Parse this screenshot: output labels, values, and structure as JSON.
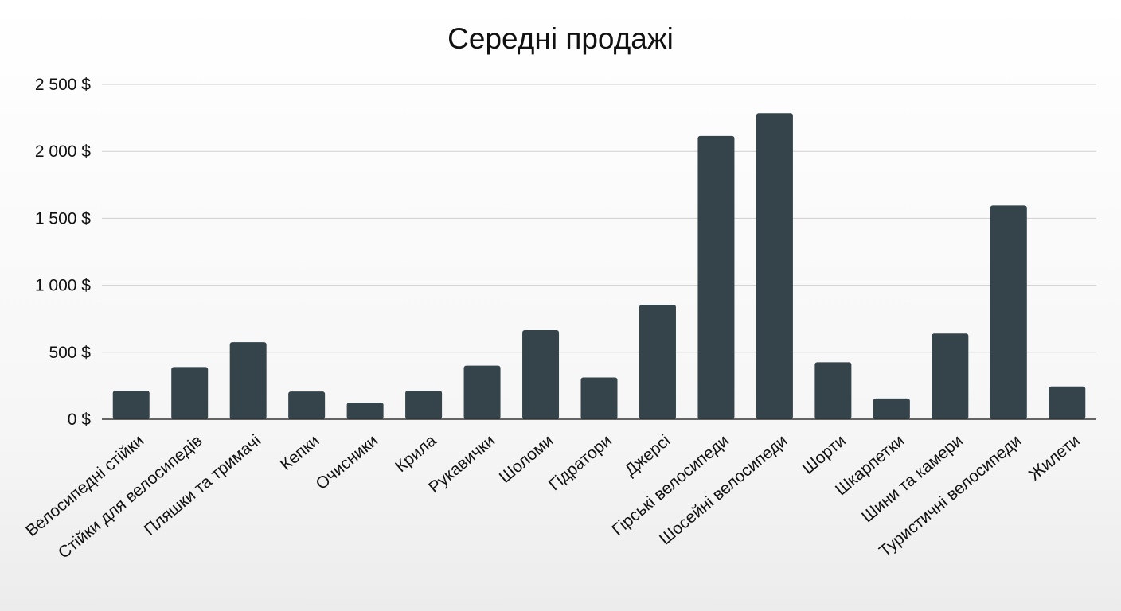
{
  "chart_data": {
    "type": "bar",
    "title": "Середні продажі",
    "xlabel": "",
    "ylabel": "",
    "ylim": [
      0,
      2500
    ],
    "yticks": [
      0,
      500,
      1000,
      1500,
      2000,
      2500
    ],
    "ytick_labels": [
      "0 $",
      "500 $",
      "1 000 $",
      "1 500 $",
      "2 000 $",
      "2 500 $"
    ],
    "grid": true,
    "legend": "none",
    "bar_color": "#34444a",
    "categories": [
      "Велосипедні стійки",
      "Стійки для велосипедів",
      "Пляшки та тримачі",
      "Кепки",
      "Очисники",
      "Крила",
      "Рукавички",
      "Шоломи",
      "Гідратори",
      "Джерсі",
      "Гірські велосипеди",
      "Шосейні велосипеди",
      "Шорти",
      "Шкарпетки",
      "Шини та камери",
      "Туристичні велосипеди",
      "Жилети"
    ],
    "values": [
      213,
      390,
      575,
      207,
      125,
      213,
      400,
      665,
      312,
      855,
      2115,
      2285,
      425,
      155,
      640,
      1595,
      245
    ]
  }
}
